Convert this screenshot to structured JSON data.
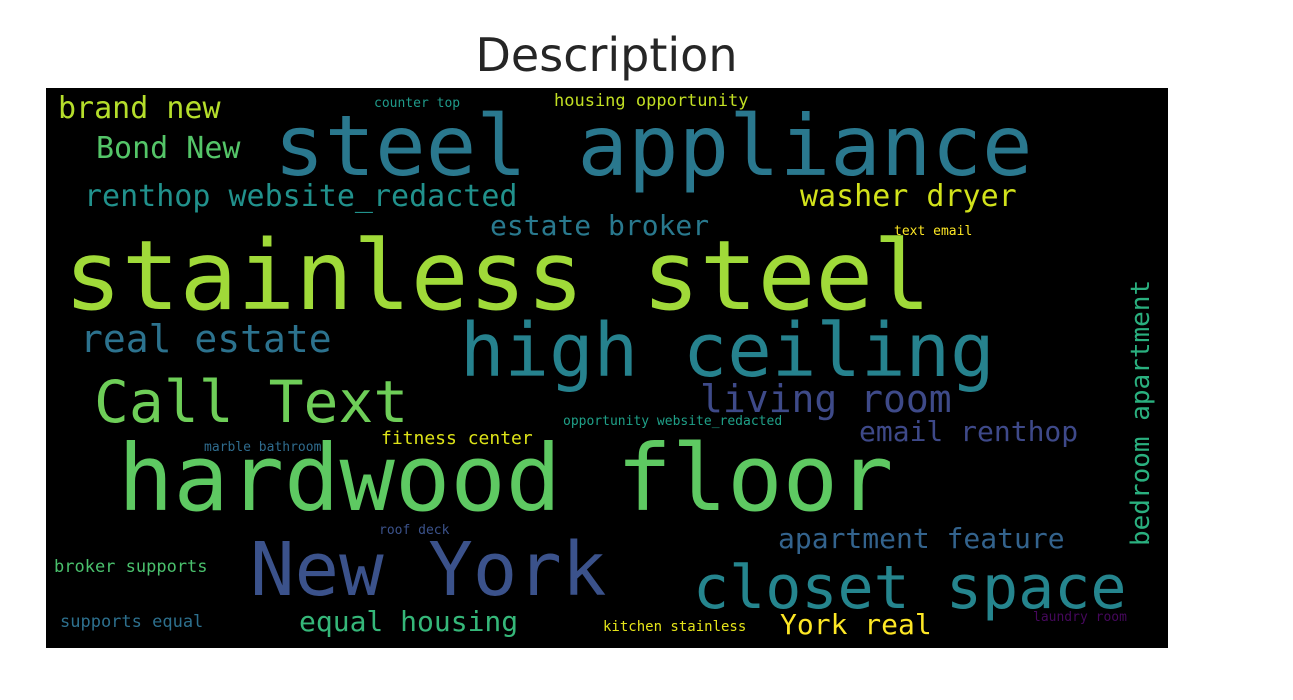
{
  "chart_data": {
    "type": "wordcloud",
    "title": "Description",
    "words": [
      {
        "text": "stainless steel",
        "color": "#a0da39"
      },
      {
        "text": "steel appliance",
        "color": "#2a788e"
      },
      {
        "text": "hardwood floor",
        "color": "#5ec962"
      },
      {
        "text": "high ceiling",
        "color": "#26828e"
      },
      {
        "text": "New York",
        "color": "#3b528b"
      },
      {
        "text": "closet space",
        "color": "#25858e"
      },
      {
        "text": "Call Text",
        "color": "#6ece58"
      },
      {
        "text": "living room",
        "color": "#3e4a89"
      },
      {
        "text": "real estate",
        "color": "#2c728e"
      },
      {
        "text": "brand new",
        "color": "#b5de2b"
      },
      {
        "text": "Bond New",
        "color": "#54c568"
      },
      {
        "text": "renthop website_redacted",
        "color": "#21918c"
      },
      {
        "text": "washer dryer",
        "color": "#d2e21b"
      },
      {
        "text": "estate broker",
        "color": "#29798e"
      },
      {
        "text": "email renthop",
        "color": "#3e4989"
      },
      {
        "text": "bedroom apartment",
        "color": "#2ab07f"
      },
      {
        "text": "apartment feature",
        "color": "#33638d"
      },
      {
        "text": "equal housing",
        "color": "#35b779"
      },
      {
        "text": "York real",
        "color": "#fde725"
      },
      {
        "text": "fitness center",
        "color": "#dde318"
      },
      {
        "text": "housing opportunity",
        "color": "#c2df23"
      },
      {
        "text": "broker supports",
        "color": "#4ac16d"
      },
      {
        "text": "supports equal",
        "color": "#2d708e"
      },
      {
        "text": "opportunity website_redacted",
        "color": "#1fa088"
      },
      {
        "text": "marble bathroom",
        "color": "#2f6c8e"
      },
      {
        "text": "counter top",
        "color": "#1f9a8a"
      },
      {
        "text": "text email",
        "color": "#fde725"
      },
      {
        "text": "roof deck",
        "color": "#3b528b"
      },
      {
        "text": "kitchen stainless",
        "color": "#e5e419"
      },
      {
        "text": "laundry room",
        "color": "#46085c"
      }
    ]
  }
}
